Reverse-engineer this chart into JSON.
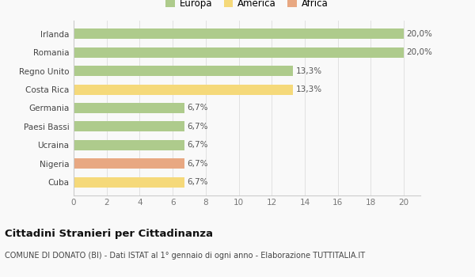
{
  "categories": [
    "Cuba",
    "Nigeria",
    "Ucraina",
    "Paesi Bassi",
    "Germania",
    "Costa Rica",
    "Regno Unito",
    "Romania",
    "Irlanda"
  ],
  "values": [
    6.7,
    6.7,
    6.7,
    6.7,
    6.7,
    13.3,
    13.3,
    20.0,
    20.0
  ],
  "labels": [
    "6,7%",
    "6,7%",
    "6,7%",
    "6,7%",
    "6,7%",
    "13,3%",
    "13,3%",
    "20,0%",
    "20,0%"
  ],
  "colors": [
    "#f5d97a",
    "#e8a882",
    "#aecb8c",
    "#aecb8c",
    "#aecb8c",
    "#f5d97a",
    "#aecb8c",
    "#aecb8c",
    "#aecb8c"
  ],
  "legend": [
    {
      "label": "Europa",
      "color": "#aecb8c"
    },
    {
      "label": "America",
      "color": "#f5d97a"
    },
    {
      "label": "Africa",
      "color": "#e8a882"
    }
  ],
  "title": "Cittadini Stranieri per Cittadinanza",
  "subtitle": "COMUNE DI DONATO (BI) - Dati ISTAT al 1° gennaio di ogni anno - Elaborazione TUTTITALIA.IT",
  "xlim": [
    0,
    21
  ],
  "xticks": [
    0,
    2,
    4,
    6,
    8,
    10,
    12,
    14,
    16,
    18,
    20
  ],
  "background_color": "#f9f9f9",
  "bar_height": 0.55,
  "title_fontsize": 9.5,
  "subtitle_fontsize": 7,
  "label_fontsize": 7.5,
  "tick_fontsize": 7.5,
  "legend_fontsize": 8.5,
  "ytick_fontsize": 7.5
}
